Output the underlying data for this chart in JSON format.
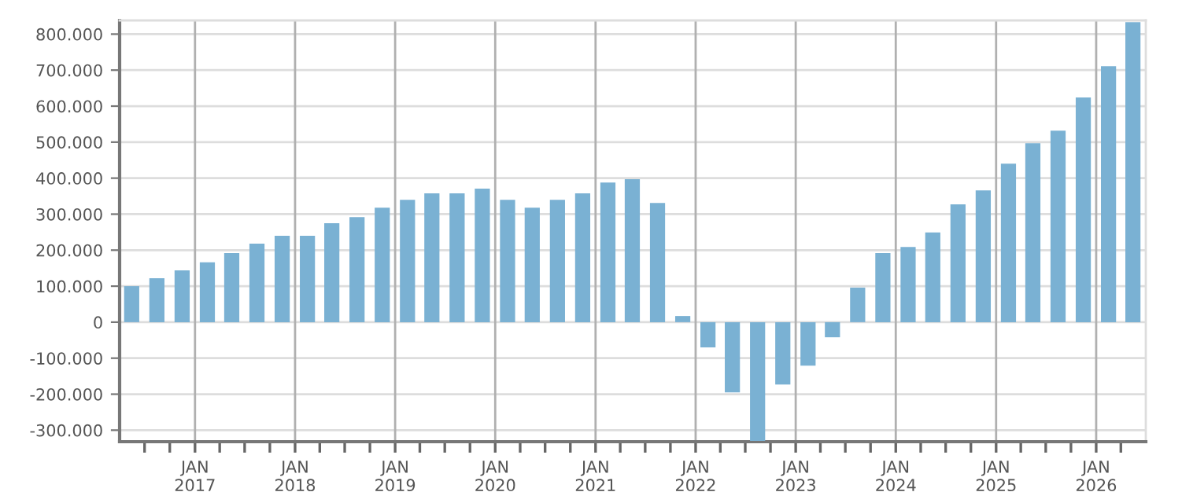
{
  "chart_data": {
    "type": "bar",
    "color": "#7ab1d3",
    "x": [
      "2016-05-15",
      "2016-08-15",
      "2016-11-15",
      "2017-02-15",
      "2017-05-15",
      "2017-08-15",
      "2017-11-15",
      "2018-02-15",
      "2018-05-15",
      "2018-08-15",
      "2018-11-15",
      "2019-02-15",
      "2019-05-15",
      "2019-08-15",
      "2019-11-15",
      "2020-02-15",
      "2020-05-15",
      "2020-08-15",
      "2020-11-15",
      "2021-02-15",
      "2021-05-15",
      "2021-08-15",
      "2021-11-15",
      "2022-02-15",
      "2022-05-15",
      "2022-08-15",
      "2022-11-15",
      "2023-02-15",
      "2023-05-15",
      "2023-08-15",
      "2023-11-15",
      "2024-02-15",
      "2024-05-15",
      "2024-08-15",
      "2024-11-15",
      "2025-02-15",
      "2025-05-15",
      "2025-08-15",
      "2025-11-15",
      "2026-02-15",
      "2026-05-15"
    ],
    "values": [
      100000,
      122000,
      144000,
      166000,
      192000,
      218000,
      240000,
      240000,
      275000,
      292000,
      318000,
      340000,
      358000,
      358000,
      371000,
      340000,
      318000,
      340000,
      358000,
      388000,
      397000,
      331000,
      17000,
      -70000,
      -195000,
      -330000,
      -173000,
      -121000,
      -42000,
      96000,
      192000,
      209000,
      249000,
      327000,
      366000,
      440000,
      497000,
      532000,
      624000,
      711000,
      833000
    ],
    "xlim": [
      "2016-04-01",
      "2026-07-01"
    ],
    "xticks": [
      {
        "value": "2016-07-01",
        "label": null
      },
      {
        "value": "2016-10-01",
        "label": null
      },
      {
        "value": "2017-01-01",
        "label": "JAN\n2017"
      },
      {
        "value": "2017-04-01",
        "label": null
      },
      {
        "value": "2017-07-01",
        "label": null
      },
      {
        "value": "2017-10-01",
        "label": null
      },
      {
        "value": "2018-01-01",
        "label": "JAN\n2018"
      },
      {
        "value": "2018-04-01",
        "label": null
      },
      {
        "value": "2018-07-01",
        "label": null
      },
      {
        "value": "2018-10-01",
        "label": null
      },
      {
        "value": "2019-01-01",
        "label": "JAN\n2019"
      },
      {
        "value": "2019-04-01",
        "label": null
      },
      {
        "value": "2019-07-01",
        "label": null
      },
      {
        "value": "2019-10-01",
        "label": null
      },
      {
        "value": "2020-01-01",
        "label": "JAN\n2020"
      },
      {
        "value": "2020-04-01",
        "label": null
      },
      {
        "value": "2020-07-01",
        "label": null
      },
      {
        "value": "2020-10-01",
        "label": null
      },
      {
        "value": "2021-01-01",
        "label": "JAN\n2021"
      },
      {
        "value": "2021-04-01",
        "label": null
      },
      {
        "value": "2021-07-01",
        "label": null
      },
      {
        "value": "2021-10-01",
        "label": null
      },
      {
        "value": "2022-01-01",
        "label": "JAN\n2022"
      },
      {
        "value": "2022-04-01",
        "label": null
      },
      {
        "value": "2022-07-01",
        "label": null
      },
      {
        "value": "2022-10-01",
        "label": null
      },
      {
        "value": "2023-01-01",
        "label": "JAN\n2023"
      },
      {
        "value": "2023-04-01",
        "label": null
      },
      {
        "value": "2023-07-01",
        "label": null
      },
      {
        "value": "2023-10-01",
        "label": null
      },
      {
        "value": "2024-01-01",
        "label": "JAN\n2024"
      },
      {
        "value": "2024-04-01",
        "label": null
      },
      {
        "value": "2024-07-01",
        "label": null
      },
      {
        "value": "2024-10-01",
        "label": null
      },
      {
        "value": "2025-01-01",
        "label": "JAN\n2025"
      },
      {
        "value": "2025-04-01",
        "label": null
      },
      {
        "value": "2025-07-01",
        "label": null
      },
      {
        "value": "2025-10-01",
        "label": null
      },
      {
        "value": "2026-01-01",
        "label": "JAN\n2026"
      },
      {
        "value": "2026-04-01",
        "label": null
      }
    ],
    "ylim": [
      -332000,
      838000
    ],
    "yticks": [
      {
        "value": -300000,
        "label": "-300.000"
      },
      {
        "value": -200000,
        "label": "-200.000"
      },
      {
        "value": -100000,
        "label": "-100.000"
      },
      {
        "value": 0,
        "label": "0"
      },
      {
        "value": 100000,
        "label": "100.000"
      },
      {
        "value": 200000,
        "label": "200.000"
      },
      {
        "value": 300000,
        "label": "300.000"
      },
      {
        "value": 400000,
        "label": "400.000"
      },
      {
        "value": 500000,
        "label": "500.000"
      },
      {
        "value": 600000,
        "label": "600.000"
      },
      {
        "value": 700000,
        "label": "700.000"
      },
      {
        "value": 800000,
        "label": "800.000"
      }
    ],
    "grid": true
  }
}
